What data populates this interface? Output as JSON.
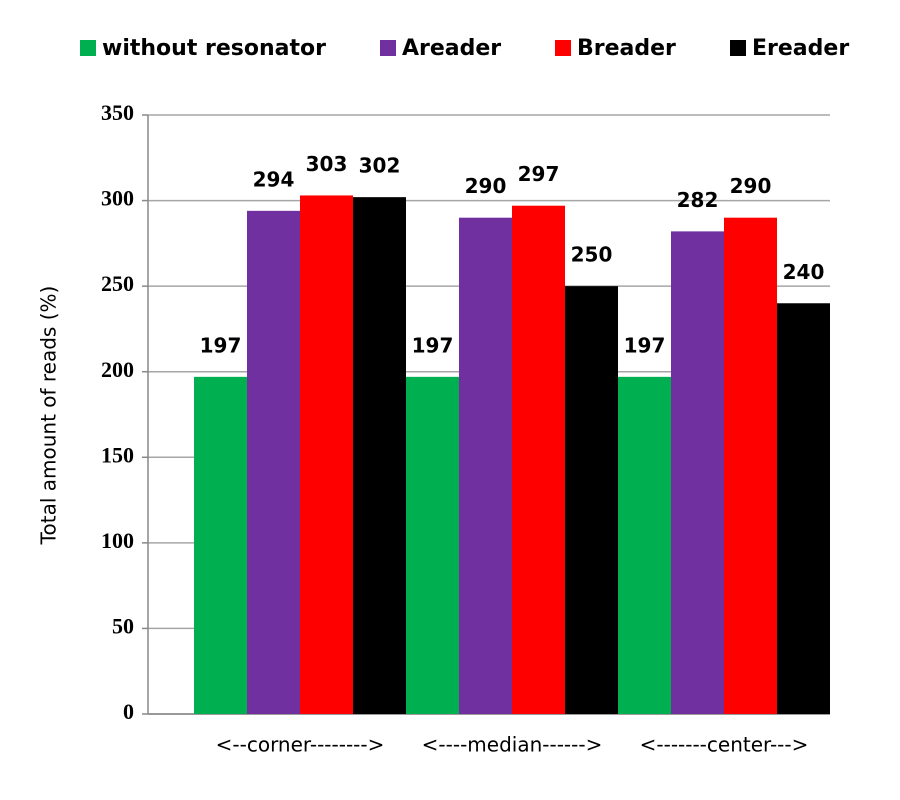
{
  "chart_data": {
    "type": "bar",
    "y_label": "Total amount of reads (%)",
    "categories": [
      "<--corner-------->",
      "<----median------>",
      "<-------center--->"
    ],
    "series": [
      {
        "name": "without resonator",
        "color": "#00b050",
        "values": [
          197,
          197,
          197
        ]
      },
      {
        "name": "Areader",
        "color": "#7030a0",
        "values": [
          294,
          290,
          282
        ]
      },
      {
        "name": "Breader",
        "color": "#ff0000",
        "values": [
          303,
          297,
          290
        ]
      },
      {
        "name": "Ereader",
        "color": "#000000",
        "values": [
          302,
          250,
          240
        ]
      }
    ],
    "ylim": [
      0,
      350
    ],
    "yticks": [
      0,
      50,
      100,
      150,
      200,
      250,
      300,
      350
    ],
    "grid": true,
    "legend": "top"
  }
}
